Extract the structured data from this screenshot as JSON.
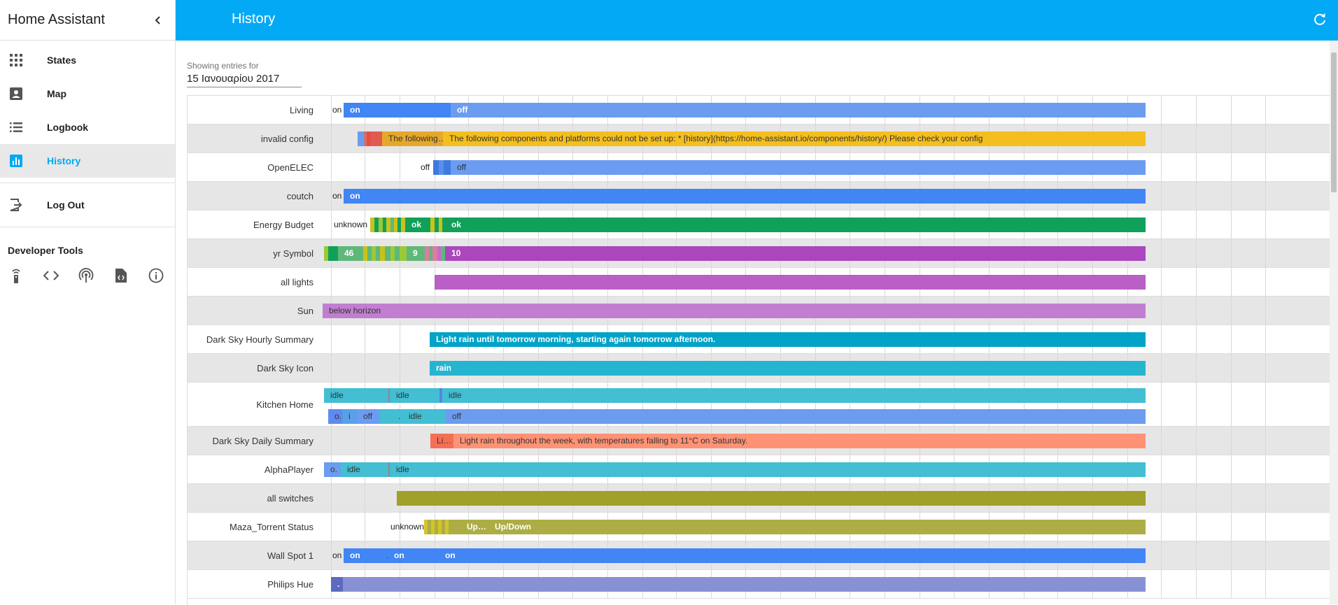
{
  "app": {
    "title": "Home Assistant"
  },
  "sidebar": {
    "items": [
      {
        "label": "States",
        "icon": "grid-icon",
        "active": false
      },
      {
        "label": "Map",
        "icon": "account-box-icon",
        "active": false
      },
      {
        "label": "Logbook",
        "icon": "list-icon",
        "active": false
      },
      {
        "label": "History",
        "icon": "chart-bar-icon",
        "active": true
      }
    ],
    "logout_label": "Log Out",
    "dev_tools_title": "Developer Tools",
    "dev_tools": [
      "remote-icon",
      "code-icon",
      "broadcast-icon",
      "file-code-icon",
      "info-icon"
    ]
  },
  "header": {
    "title": "History",
    "refresh_icon": "refresh-icon",
    "color": "#03a9f4"
  },
  "filter": {
    "label": "Showing entries for",
    "date": "15 Ιανουαρίου 2017"
  },
  "timeline": [
    {
      "name": "Living",
      "plain": [
        "on"
      ],
      "labels": [
        "on",
        "off"
      ]
    },
    {
      "name": "invalid config",
      "labels": [
        "The following…",
        "The following components and platforms could not be set up: * [history](https://home-assistant.io/components/history/) Please check your config"
      ]
    },
    {
      "name": "OpenELEC",
      "plain": [
        "off"
      ],
      "labels": [
        "off"
      ]
    },
    {
      "name": "coutch",
      "plain": [
        "on"
      ],
      "labels": [
        "on"
      ]
    },
    {
      "name": "Energy Budget",
      "plain": [
        "unknown"
      ],
      "labels": [
        "ok",
        "ok"
      ]
    },
    {
      "name": "yr Symbol",
      "labels": [
        "46",
        "9",
        "10"
      ]
    },
    {
      "name": "all lights",
      "labels": []
    },
    {
      "name": "Sun",
      "labels": [
        "below horizon"
      ]
    },
    {
      "name": "Dark Sky Hourly Summary",
      "labels": [
        "Light rain until tomorrow morning, starting again tomorrow afternoon."
      ]
    },
    {
      "name": "Dark Sky Icon",
      "labels": [
        "rain"
      ]
    },
    {
      "name": "Kitchen Home",
      "labels": [
        "idle",
        "idle",
        "idle",
        "o.",
        "i",
        "off",
        ".",
        "idle",
        "off"
      ]
    },
    {
      "name": "Dark Sky Daily Summary",
      "labels": [
        "Li…",
        "Light rain throughout the week, with temperatures falling to 11°C on Saturday."
      ]
    },
    {
      "name": "AlphaPlayer",
      "labels": [
        "o.",
        "idle",
        "idle"
      ]
    },
    {
      "name": "all switches",
      "labels": []
    },
    {
      "name": "Maza_Torrent Status",
      "plain": [
        "unknown"
      ],
      "labels": [
        "Up…",
        "Up/Down"
      ]
    },
    {
      "name": "Wall Spot 1",
      "plain": [
        "on"
      ],
      "labels": [
        "on",
        ".",
        "on",
        "on"
      ]
    },
    {
      "name": "Philips Hue",
      "labels": [
        "."
      ]
    }
  ]
}
